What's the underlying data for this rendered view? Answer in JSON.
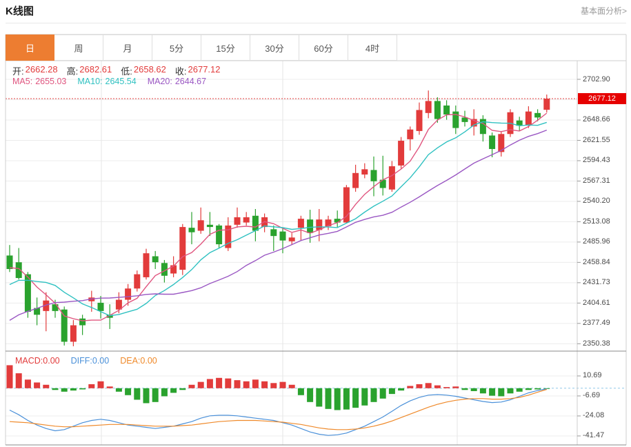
{
  "header": {
    "title": "K线图",
    "link": "基本面分析>"
  },
  "tabs": {
    "items": [
      "日",
      "周",
      "月",
      "5分",
      "15分",
      "30分",
      "60分",
      "4时"
    ],
    "active": 0
  },
  "quote": {
    "open_label": "开:",
    "open": "2662.28",
    "high_label": "高:",
    "high": "2682.61",
    "low_label": "低:",
    "low": "2658.62",
    "close_label": "收:",
    "close": "2677.12"
  },
  "ma": {
    "ma5_label": "MA5:",
    "ma5": "2655.03",
    "ma10_label": "MA10:",
    "ma10": "2645.54",
    "ma20_label": "MA20:",
    "ma20": "2644.67"
  },
  "macd_header": {
    "macd_label": "MACD:",
    "macd": "0.00",
    "diff_label": "DIFF:",
    "diff": "0.00",
    "dea_label": "DEA:",
    "dea": "0.00"
  },
  "colors": {
    "up": "#e23b3b",
    "down": "#2aa22e",
    "ma5": "#e0557f",
    "ma10": "#2fc1c1",
    "ma20": "#9a57c3",
    "diff_line": "#4a90d9",
    "dea_line": "#ef8929",
    "tag_bg": "#e60000",
    "tab_active": "#ed7d31",
    "dotted_price_line": "#e03c3c",
    "zero_dashed_line": "#8fc7e8",
    "grid": "#ececec",
    "vgrid": "#e6e6e6",
    "border": "#cfcfcf",
    "dark_border": "#8a8a8a"
  },
  "chart_data": {
    "type": "candlestick+macd",
    "title": "K线图",
    "period_selected": "日",
    "price_axis": {
      "labels": [
        "2702.90",
        "2648.66",
        "2621.55",
        "2594.43",
        "2567.31",
        "2540.20",
        "2513.08",
        "2485.96",
        "2458.84",
        "2431.73",
        "2404.61",
        "2377.49",
        "2350.38"
      ],
      "ylim": [
        2350.38,
        2702.9
      ],
      "current_price": 2677.12,
      "current_price_tag": "2677.12"
    },
    "macd_axis": {
      "labels": [
        "10.69",
        "-6.69",
        "-24.08",
        "-41.47"
      ],
      "ylim": [
        -48,
        22
      ]
    },
    "candles_ohlc": [
      [
        2468,
        2482,
        2446,
        2450
      ],
      [
        2459,
        2478,
        2436,
        2438
      ],
      [
        2443,
        2446,
        2385,
        2393
      ],
      [
        2398,
        2412,
        2375,
        2389
      ],
      [
        2394,
        2419,
        2367,
        2408
      ],
      [
        2403,
        2409,
        2385,
        2394
      ],
      [
        2396,
        2400,
        2348,
        2353
      ],
      [
        2353,
        2382,
        2347,
        2375
      ],
      [
        2384,
        2389,
        2362,
        2375
      ],
      [
        2407,
        2421,
        2393,
        2412
      ],
      [
        2405,
        2414,
        2384,
        2394
      ],
      [
        2389,
        2403,
        2370,
        2385
      ],
      [
        2396,
        2419,
        2391,
        2409
      ],
      [
        2409,
        2430,
        2401,
        2424
      ],
      [
        2424,
        2448,
        2420,
        2443
      ],
      [
        2439,
        2477,
        2436,
        2471
      ],
      [
        2467,
        2474,
        2450,
        2459
      ],
      [
        2458,
        2462,
        2432,
        2441
      ],
      [
        2444,
        2467,
        2439,
        2455
      ],
      [
        2449,
        2510,
        2442,
        2506
      ],
      [
        2505,
        2526,
        2483,
        2499
      ],
      [
        2501,
        2532,
        2497,
        2515
      ],
      [
        2509,
        2526,
        2494,
        2506
      ],
      [
        2508,
        2510,
        2478,
        2483
      ],
      [
        2478,
        2519,
        2474,
        2508
      ],
      [
        2509,
        2532,
        2505,
        2519
      ],
      [
        2512,
        2526,
        2508,
        2519
      ],
      [
        2521,
        2530,
        2487,
        2501
      ],
      [
        2506,
        2524,
        2499,
        2519
      ],
      [
        2503,
        2508,
        2474,
        2494
      ],
      [
        2500,
        2505,
        2471,
        2488
      ],
      [
        2487,
        2498,
        2482,
        2492
      ],
      [
        2505,
        2521,
        2488,
        2517
      ],
      [
        2516,
        2529,
        2485,
        2498
      ],
      [
        2502,
        2530,
        2487,
        2516
      ],
      [
        2507,
        2521,
        2502,
        2516
      ],
      [
        2517,
        2528,
        2506,
        2512
      ],
      [
        2512,
        2562,
        2511,
        2559
      ],
      [
        2558,
        2589,
        2553,
        2578
      ],
      [
        2576,
        2591,
        2571,
        2583
      ],
      [
        2582,
        2600,
        2547,
        2567
      ],
      [
        2569,
        2601,
        2548,
        2558
      ],
      [
        2556,
        2594,
        2553,
        2587
      ],
      [
        2588,
        2626,
        2584,
        2621
      ],
      [
        2623,
        2640,
        2608,
        2636
      ],
      [
        2634,
        2672,
        2629,
        2662
      ],
      [
        2658,
        2688,
        2651,
        2674
      ],
      [
        2674,
        2679,
        2645,
        2650
      ],
      [
        2668,
        2675,
        2649,
        2656
      ],
      [
        2660,
        2668,
        2630,
        2638
      ],
      [
        2652,
        2661,
        2640,
        2646
      ],
      [
        2640,
        2663,
        2628,
        2650
      ],
      [
        2650,
        2655,
        2620,
        2630
      ],
      [
        2628,
        2632,
        2599,
        2610
      ],
      [
        2606,
        2634,
        2600,
        2630
      ],
      [
        2630,
        2663,
        2626,
        2659
      ],
      [
        2648,
        2653,
        2634,
        2641
      ],
      [
        2642,
        2667,
        2638,
        2660
      ],
      [
        2658,
        2663,
        2647,
        2652
      ],
      [
        2662.28,
        2682.61,
        2658.62,
        2677.12
      ]
    ],
    "prehistory_closes": [
      2280,
      2290,
      2300,
      2310,
      2320,
      2330,
      2340,
      2350,
      2358,
      2366,
      2374,
      2382,
      2392,
      2406,
      2420,
      2434,
      2444,
      2450,
      2455,
      2460
    ],
    "ma_periods": [
      5,
      10,
      20
    ],
    "macd": {
      "histogram": [
        20,
        13,
        7.5,
        5,
        3,
        -1.5,
        -3,
        -2,
        -1,
        3.5,
        6,
        1.5,
        -3,
        -6,
        -10,
        -13,
        -12,
        -7,
        -4,
        -1.5,
        3,
        5.5,
        8,
        9,
        8.5,
        7,
        6,
        7.5,
        6,
        4.5,
        5.5,
        3,
        -6,
        -12,
        -16,
        -18,
        -19,
        -18.5,
        -17,
        -15,
        -12,
        -9,
        -5,
        -2,
        2,
        3.5,
        4.5,
        2.5,
        1,
        1.5,
        -1.5,
        -2.5,
        -4.5,
        -6.5,
        -7,
        -4.5,
        -3,
        -1.5,
        -1,
        -0.3
      ],
      "diff": [
        -19,
        -23,
        -28,
        -32,
        -35,
        -37,
        -36,
        -33,
        -30,
        -28,
        -27,
        -28,
        -30,
        -32,
        -33,
        -34,
        -35,
        -34,
        -33,
        -31,
        -29,
        -26,
        -24,
        -23.5,
        -23.5,
        -24,
        -25,
        -26,
        -27,
        -28,
        -30,
        -32,
        -35,
        -38,
        -40,
        -41,
        -40.5,
        -39,
        -36,
        -33,
        -29,
        -25,
        -20,
        -15,
        -11,
        -8,
        -6,
        -5.5,
        -6,
        -7,
        -8.5,
        -10,
        -11.5,
        -12.5,
        -12,
        -10,
        -7,
        -4,
        -2,
        -0.5
      ],
      "dea": [
        -29,
        -29.5,
        -30,
        -31,
        -32,
        -33,
        -33.5,
        -33.5,
        -33,
        -32.5,
        -32,
        -31.5,
        -31.5,
        -31.5,
        -32,
        -32.5,
        -33,
        -33,
        -33,
        -32.5,
        -32,
        -31,
        -30,
        -29,
        -28.5,
        -28,
        -28,
        -28,
        -28.5,
        -29,
        -29.5,
        -30.5,
        -31.5,
        -33,
        -34.5,
        -35.5,
        -36,
        -36,
        -35.5,
        -34.5,
        -33,
        -31,
        -28.5,
        -25.5,
        -22.5,
        -19.5,
        -16.5,
        -14,
        -12,
        -10.5,
        -9.5,
        -9,
        -9,
        -9.5,
        -9.5,
        -9,
        -8,
        -6,
        -3.5,
        -1
      ]
    }
  }
}
